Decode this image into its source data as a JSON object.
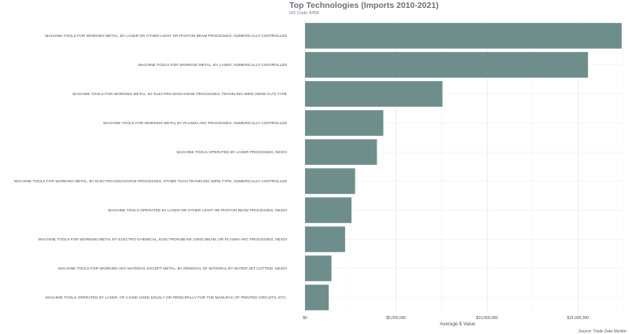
{
  "chart_data": {
    "type": "bar",
    "orientation": "horizontal",
    "title": "Top Technologies (Imports 2010-2021)",
    "subtitle": "HS Code 8456",
    "xlabel": "Average $ Value",
    "ylabel": "",
    "source": "Source: Trade Data Monitor",
    "xlim": [
      0,
      17500000
    ],
    "xticks": [
      0,
      5000000,
      10000000,
      15000000
    ],
    "xtick_labels": [
      "$0",
      "$5,000,000",
      "$10,000,000",
      "$15,000,000"
    ],
    "grid": true,
    "bar_color": "#6d8e8a",
    "categories": [
      "MACHINE TOOLS FOR WORKING METAL, BY LASER OR OTHER LIGHT OR PHOTON BEAM PROCESSES, NUMERICALLY CONTROLLED",
      "MACHINE TOOLS FOR WORKING METAL, BY LASER, NUMERICALLY CONTROLLED",
      "MACHINE TOOLS FOR WORKING METAL, BY ELECTRO-DISCHARGE PROCESSES, TRAVELING WIRE (WIRE-CUT) TYPE",
      "MACHINE TOOLS FOR WORKING METAL BY PLASMA ARC PROCESSES, NUMERICALLY CONTROLLED",
      "MACHINE TOOLS OPERATED BY LASER PROCESSES, NESOI",
      "MACHINE TOOLS FOR WORKING METAL, BY ELECTRO-DISCHARGE PROCESSES, OTHER THAN TRAVELING WIRE TYPE, NUMERICALLY CONTROLLED",
      "MACHINE TOOLS OPERATED BY LASER OR OTHER LIGHT OR PHOTON BEAM PROCESSES, NESOI",
      "MACHINE TOOLS FOR WORKING METAL BY ELECTRO-CHEMICAL, ELECTRON-BEAM, IONIC-BEAM, OR PLASMA ARC PROCESSES, NESOI",
      "MACHINE TOOLS FOR WORKING ANY MATERIAL EXCEPT METAL, BY REMOVAL OF MATERIAL BY WATER-JET CUTTING, NESOI",
      "MACHINE TOOLS OPERATED BY LASER, OF A KIND USED SOLELY OR PRINCIPALLY FOR THE MANUFAC OF PRINTED CIRCUITS, ETC."
    ],
    "values": [
      17400000,
      15550000,
      7550000,
      4300000,
      3950000,
      2750000,
      2550000,
      2200000,
      1450000,
      1300000
    ]
  }
}
